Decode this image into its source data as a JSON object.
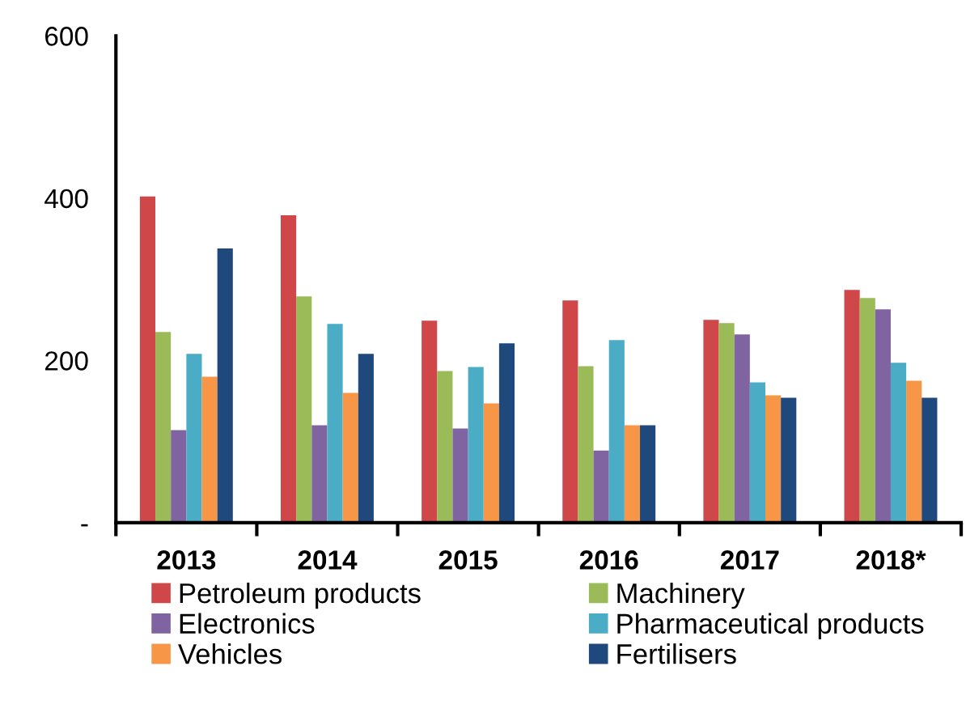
{
  "chart_data": {
    "type": "bar",
    "categories": [
      "2013",
      "2014",
      "2015",
      "2016",
      "2017",
      "2018*"
    ],
    "series": [
      {
        "name": "Petroleum products",
        "color": "#d0474a",
        "values": [
          402,
          379,
          249,
          274,
          250,
          287
        ]
      },
      {
        "name": "Machinery",
        "color": "#9bbb59",
        "values": [
          235,
          279,
          187,
          193,
          246,
          277
        ]
      },
      {
        "name": "Electronics",
        "color": "#8064a2",
        "values": [
          114,
          120,
          116,
          89,
          232,
          263
        ]
      },
      {
        "name": "Pharmaceutical products",
        "color": "#4bacc6",
        "values": [
          208,
          245,
          192,
          225,
          173,
          197
        ]
      },
      {
        "name": "Vehicles",
        "color": "#f79646",
        "values": [
          180,
          160,
          147,
          120,
          157,
          175
        ]
      },
      {
        "name": "Fertilisers",
        "color": "#1f497d",
        "values": [
          338,
          208,
          221,
          120,
          154,
          154
        ]
      }
    ],
    "ylim": [
      0,
      600
    ],
    "yticks": [
      {
        "value": 0,
        "label": "-"
      },
      200,
      400,
      600
    ],
    "grid": false,
    "legend": "bottom"
  }
}
